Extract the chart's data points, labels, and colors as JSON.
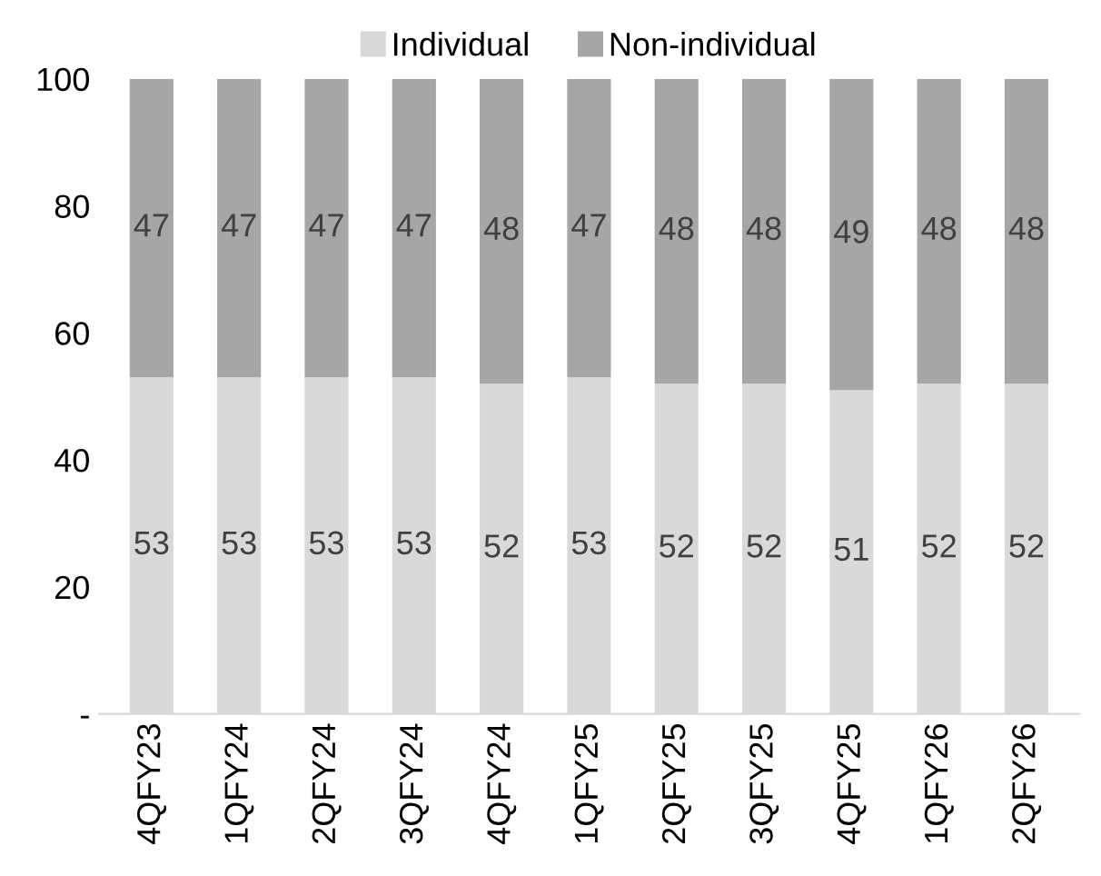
{
  "chart_data": {
    "type": "bar",
    "stacked": true,
    "categories": [
      "4QFY23",
      "1QFY24",
      "2QFY24",
      "3QFY24",
      "4QFY24",
      "1QFY25",
      "2QFY25",
      "3QFY25",
      "4QFY25",
      "1QFY26",
      "2QFY26"
    ],
    "series": [
      {
        "name": "Individual",
        "color": "#d9d9d9",
        "values": [
          53,
          53,
          53,
          53,
          52,
          53,
          52,
          52,
          51,
          52,
          52
        ]
      },
      {
        "name": "Non-individual",
        "color": "#a6a6a6",
        "values": [
          47,
          47,
          47,
          47,
          48,
          47,
          48,
          48,
          49,
          48,
          48
        ]
      }
    ],
    "ylim": [
      0,
      100
    ],
    "yticks": [
      {
        "value": 0,
        "label": "-"
      },
      20,
      40,
      60,
      80,
      100
    ],
    "data_labels": true,
    "legend": "top",
    "grid": false
  }
}
